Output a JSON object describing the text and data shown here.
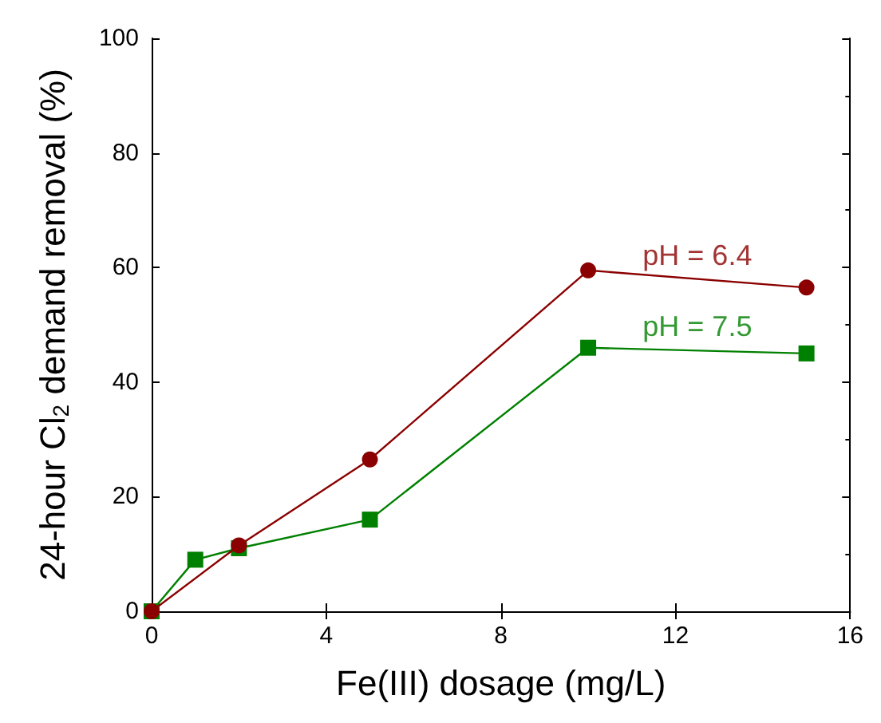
{
  "chart_data": {
    "type": "line",
    "xlabel": "Fe(III) dosage (mg/L)",
    "ylabel": "24-hour Cl$_{2}$ demand removal (%)",
    "xlim": [
      0,
      16
    ],
    "xticks": [
      0,
      4,
      8,
      12,
      16
    ],
    "ylim": [
      0,
      100
    ],
    "yticks": [
      0,
      20,
      40,
      60,
      80,
      100
    ],
    "series": [
      {
        "name": "pH = 6.4",
        "color": "#8b0000",
        "marker": "circle",
        "x": [
          0,
          2,
          5,
          10,
          15
        ],
        "values": [
          0,
          11.5,
          26.5,
          59.5,
          56.5
        ]
      },
      {
        "name": "pH = 7.5",
        "color": "#008000",
        "marker": "square",
        "x": [
          0,
          1,
          2,
          5,
          10,
          15
        ],
        "values": [
          0,
          9,
          11,
          16,
          46,
          45
        ]
      }
    ],
    "line_style": "solid"
  }
}
